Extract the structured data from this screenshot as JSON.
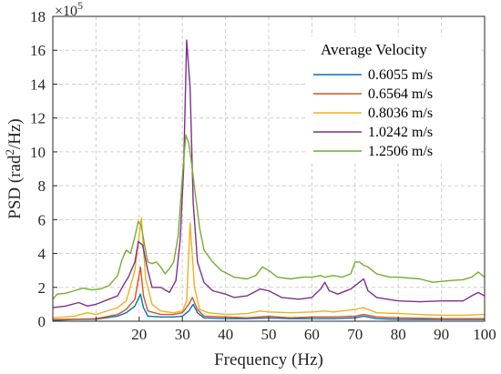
{
  "chart_data": {
    "type": "line",
    "xlabel": "Frequency (Hz)",
    "ylabel_main": "PSD (rad",
    "ylabel_sup": "2",
    "ylabel_tail": "/Hz)",
    "y_multiplier_base": "×10",
    "y_multiplier_exp": "5",
    "xlim": [
      0,
      100
    ],
    "ylim": [
      0,
      18
    ],
    "x_ticks": [
      20,
      30,
      40,
      50,
      60,
      70,
      80,
      90,
      100
    ],
    "y_ticks": [
      0,
      2,
      4,
      6,
      8,
      10,
      12,
      14,
      16,
      18
    ],
    "grid": true,
    "legend_title": "Average Velocity",
    "legend_position": "top-right",
    "series": [
      {
        "name": "0.6055 m/s",
        "color": "#0072BD",
        "points": [
          [
            0,
            0.05
          ],
          [
            5,
            0.1
          ],
          [
            10,
            0.12
          ],
          [
            15,
            0.3
          ],
          [
            17,
            0.5
          ],
          [
            19,
            0.9
          ],
          [
            20.3,
            1.6
          ],
          [
            21,
            0.8
          ],
          [
            22,
            0.3
          ],
          [
            25,
            0.25
          ],
          [
            28,
            0.25
          ],
          [
            30,
            0.3
          ],
          [
            31.5,
            0.6
          ],
          [
            32.5,
            1.0
          ],
          [
            33.5,
            0.5
          ],
          [
            35,
            0.2
          ],
          [
            40,
            0.15
          ],
          [
            45,
            0.15
          ],
          [
            50,
            0.2
          ],
          [
            55,
            0.15
          ],
          [
            60,
            0.15
          ],
          [
            65,
            0.15
          ],
          [
            70,
            0.2
          ],
          [
            72,
            0.3
          ],
          [
            75,
            0.15
          ],
          [
            80,
            0.1
          ],
          [
            90,
            0.1
          ],
          [
            100,
            0.1
          ]
        ]
      },
      {
        "name": "0.6564 m/s",
        "color": "#D95319",
        "points": [
          [
            0,
            0.1
          ],
          [
            5,
            0.12
          ],
          [
            10,
            0.15
          ],
          [
            15,
            0.4
          ],
          [
            17,
            0.7
          ],
          [
            19,
            1.3
          ],
          [
            20.3,
            3.2
          ],
          [
            21,
            1.5
          ],
          [
            22,
            0.6
          ],
          [
            25,
            0.4
          ],
          [
            28,
            0.4
          ],
          [
            30,
            0.5
          ],
          [
            31.5,
            1.0
          ],
          [
            32.3,
            1.4
          ],
          [
            33.5,
            0.7
          ],
          [
            35,
            0.3
          ],
          [
            40,
            0.25
          ],
          [
            45,
            0.2
          ],
          [
            50,
            0.3
          ],
          [
            55,
            0.2
          ],
          [
            60,
            0.25
          ],
          [
            65,
            0.25
          ],
          [
            70,
            0.3
          ],
          [
            72,
            0.4
          ],
          [
            75,
            0.25
          ],
          [
            80,
            0.2
          ],
          [
            90,
            0.15
          ],
          [
            100,
            0.15
          ]
        ]
      },
      {
        "name": "0.8036 m/s",
        "color": "#EDB120",
        "points": [
          [
            0,
            0.2
          ],
          [
            5,
            0.3
          ],
          [
            8,
            0.5
          ],
          [
            10,
            0.4
          ],
          [
            15,
            0.8
          ],
          [
            17,
            1.2
          ],
          [
            19,
            3.0
          ],
          [
            20.5,
            6.1
          ],
          [
            21.5,
            2.5
          ],
          [
            23,
            1.0
          ],
          [
            25,
            0.6
          ],
          [
            28,
            0.5
          ],
          [
            30,
            0.6
          ],
          [
            31,
            1.2
          ],
          [
            31.8,
            5.8
          ],
          [
            32.8,
            2.0
          ],
          [
            34,
            0.7
          ],
          [
            36,
            0.5
          ],
          [
            40,
            0.4
          ],
          [
            45,
            0.45
          ],
          [
            48,
            0.6
          ],
          [
            50,
            0.55
          ],
          [
            55,
            0.5
          ],
          [
            60,
            0.55
          ],
          [
            63,
            0.6
          ],
          [
            65,
            0.55
          ],
          [
            70,
            0.7
          ],
          [
            72,
            0.8
          ],
          [
            75,
            0.5
          ],
          [
            80,
            0.45
          ],
          [
            85,
            0.4
          ],
          [
            90,
            0.35
          ],
          [
            95,
            0.35
          ],
          [
            100,
            0.4
          ]
        ]
      },
      {
        "name": "1.0242 m/s",
        "color": "#7E2F8E",
        "points": [
          [
            0,
            0.8
          ],
          [
            3,
            0.9
          ],
          [
            6,
            1.1
          ],
          [
            8,
            0.9
          ],
          [
            10,
            1.0
          ],
          [
            13,
            1.3
          ],
          [
            15,
            1.5
          ],
          [
            16.5,
            2.2
          ],
          [
            17.5,
            2.6
          ],
          [
            19,
            3.5
          ],
          [
            19.8,
            4.7
          ],
          [
            20.8,
            4.5
          ],
          [
            22,
            3.0
          ],
          [
            23,
            2.0
          ],
          [
            25,
            2.0
          ],
          [
            27,
            1.7
          ],
          [
            28.5,
            2.4
          ],
          [
            29.5,
            4.8
          ],
          [
            30.3,
            9.0
          ],
          [
            31,
            16.6
          ],
          [
            31.8,
            13.8
          ],
          [
            32.5,
            7.0
          ],
          [
            33.5,
            3.5
          ],
          [
            35,
            2.3
          ],
          [
            37,
            1.8
          ],
          [
            40,
            1.6
          ],
          [
            42,
            1.4
          ],
          [
            45,
            1.5
          ],
          [
            48,
            1.9
          ],
          [
            50,
            1.8
          ],
          [
            53,
            1.4
          ],
          [
            57,
            1.3
          ],
          [
            60,
            1.4
          ],
          [
            62,
            1.9
          ],
          [
            63,
            2.3
          ],
          [
            64,
            1.8
          ],
          [
            66,
            1.6
          ],
          [
            69,
            1.9
          ],
          [
            71,
            2.3
          ],
          [
            72,
            2.5
          ],
          [
            73,
            1.8
          ],
          [
            75,
            1.4
          ],
          [
            80,
            1.2
          ],
          [
            85,
            1.15
          ],
          [
            90,
            1.2
          ],
          [
            95,
            1.2
          ],
          [
            97,
            1.5
          ],
          [
            98.5,
            1.7
          ],
          [
            100,
            1.5
          ]
        ]
      },
      {
        "name": "1.2506 m/s",
        "color": "#77AC30",
        "points": [
          [
            0,
            1.3
          ],
          [
            1,
            1.6
          ],
          [
            3,
            1.65
          ],
          [
            5,
            1.8
          ],
          [
            7,
            1.95
          ],
          [
            9,
            1.85
          ],
          [
            11,
            1.9
          ],
          [
            13,
            2.1
          ],
          [
            15,
            2.7
          ],
          [
            16,
            3.6
          ],
          [
            17,
            4.2
          ],
          [
            18,
            4.0
          ],
          [
            19,
            5.0
          ],
          [
            19.8,
            5.9
          ],
          [
            20.5,
            5.6
          ],
          [
            21.3,
            4.4
          ],
          [
            22,
            3.5
          ],
          [
            23,
            3.4
          ],
          [
            24,
            3.5
          ],
          [
            25,
            3.2
          ],
          [
            26,
            2.8
          ],
          [
            27,
            3.1
          ],
          [
            28,
            3.5
          ],
          [
            29,
            5.0
          ],
          [
            30,
            8.5
          ],
          [
            30.8,
            11.0
          ],
          [
            31.5,
            10.5
          ],
          [
            32.3,
            9.0
          ],
          [
            33,
            7.5
          ],
          [
            34,
            5.5
          ],
          [
            35,
            4.2
          ],
          [
            37,
            3.5
          ],
          [
            39,
            3.0
          ],
          [
            42,
            2.6
          ],
          [
            45,
            2.5
          ],
          [
            47,
            2.7
          ],
          [
            48.5,
            3.2
          ],
          [
            50,
            3.0
          ],
          [
            52,
            2.6
          ],
          [
            55,
            2.5
          ],
          [
            58,
            2.6
          ],
          [
            60,
            2.6
          ],
          [
            62,
            2.7
          ],
          [
            63,
            2.6
          ],
          [
            65,
            2.7
          ],
          [
            67,
            2.6
          ],
          [
            69,
            2.8
          ],
          [
            70,
            3.5
          ],
          [
            71,
            3.5
          ],
          [
            72,
            3.3
          ],
          [
            73,
            3.2
          ],
          [
            75,
            2.8
          ],
          [
            78,
            2.6
          ],
          [
            80,
            2.6
          ],
          [
            85,
            2.5
          ],
          [
            88,
            2.3
          ],
          [
            90,
            2.35
          ],
          [
            92,
            2.4
          ],
          [
            95,
            2.45
          ],
          [
            97,
            2.6
          ],
          [
            98.5,
            2.9
          ],
          [
            100,
            2.6
          ]
        ]
      }
    ]
  }
}
